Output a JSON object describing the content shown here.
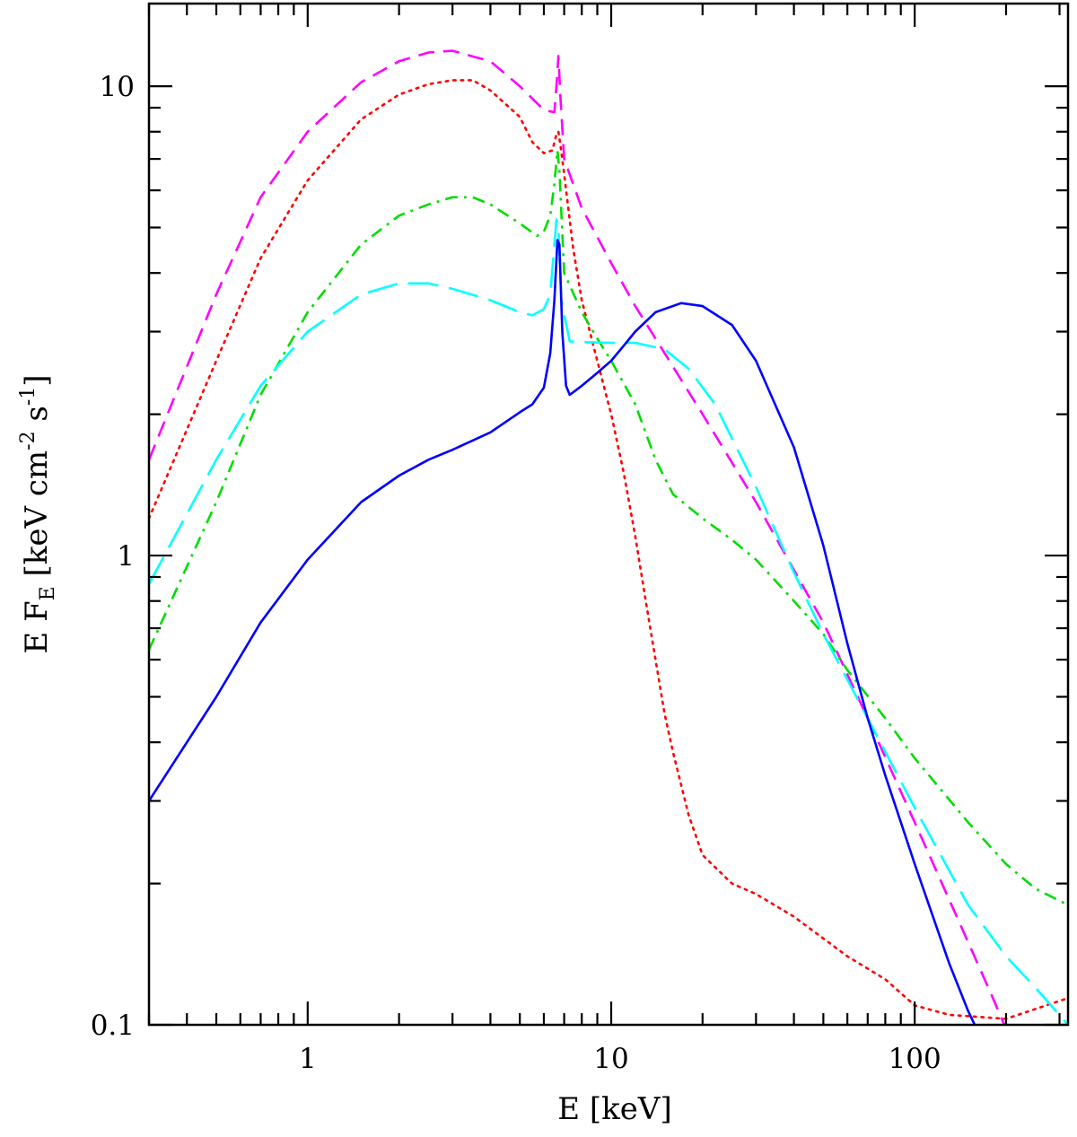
{
  "chart_data": {
    "type": "line",
    "title": "",
    "xlabel": "E [keV]",
    "ylabel": {
      "main": "E F",
      "sub": "E",
      "units": " [keV cm",
      "exp1": "-2",
      "mid": " s",
      "exp2": "-1",
      "close": "]"
    },
    "x_scale": "log",
    "y_scale": "log",
    "xlim": [
      0.3,
      320
    ],
    "ylim": [
      0.1,
      15
    ],
    "x_tick_labels": [
      {
        "value": 1,
        "label": "1"
      },
      {
        "value": 10,
        "label": "10"
      },
      {
        "value": 100,
        "label": "100"
      }
    ],
    "y_tick_labels": [
      {
        "value": 0.1,
        "label": "0.1"
      },
      {
        "value": 1,
        "label": "1"
      },
      {
        "value": 10,
        "label": "10"
      }
    ],
    "grid": false,
    "legend": "none",
    "series": [
      {
        "color": "#ff00ff",
        "dash": "dashed",
        "points": [
          [
            0.3,
            1.6
          ],
          [
            0.5,
            3.6
          ],
          [
            0.7,
            5.8
          ],
          [
            1,
            8.0
          ],
          [
            1.5,
            10.2
          ],
          [
            2,
            11.3
          ],
          [
            2.5,
            11.8
          ],
          [
            3,
            11.9
          ],
          [
            4,
            11.3
          ],
          [
            5,
            10.0
          ],
          [
            6,
            8.9
          ],
          [
            6.5,
            8.8
          ],
          [
            6.6,
            10.0
          ],
          [
            6.7,
            11.6
          ],
          [
            6.8,
            9.5
          ],
          [
            7,
            7.0
          ],
          [
            8,
            5.5
          ],
          [
            10,
            4.2
          ],
          [
            12,
            3.4
          ],
          [
            15,
            2.7
          ],
          [
            20,
            2.0
          ],
          [
            30,
            1.3
          ],
          [
            50,
            0.72
          ],
          [
            70,
            0.45
          ],
          [
            100,
            0.27
          ],
          [
            150,
            0.15
          ],
          [
            180,
            0.115
          ],
          [
            200,
            0.098
          ]
        ]
      },
      {
        "color": "#ff0000",
        "dash": "dotted",
        "points": [
          [
            0.3,
            1.2
          ],
          [
            0.5,
            2.6
          ],
          [
            0.7,
            4.3
          ],
          [
            1,
            6.3
          ],
          [
            1.5,
            8.5
          ],
          [
            2,
            9.6
          ],
          [
            2.5,
            10.1
          ],
          [
            3,
            10.3
          ],
          [
            3.5,
            10.3
          ],
          [
            4,
            9.8
          ],
          [
            5,
            8.6
          ],
          [
            5.5,
            7.6
          ],
          [
            6,
            7.2
          ],
          [
            6.4,
            7.3
          ],
          [
            6.6,
            7.9
          ],
          [
            6.7,
            8.0
          ],
          [
            6.8,
            7.5
          ],
          [
            7,
            6.5
          ],
          [
            7.5,
            4.5
          ],
          [
            8,
            3.5
          ],
          [
            9,
            2.6
          ],
          [
            10,
            2.0
          ],
          [
            11,
            1.5
          ],
          [
            12,
            1.1
          ],
          [
            13,
            0.8
          ],
          [
            14,
            0.6
          ],
          [
            15,
            0.46
          ],
          [
            16,
            0.38
          ],
          [
            18,
            0.28
          ],
          [
            20,
            0.23
          ],
          [
            25,
            0.2
          ],
          [
            30,
            0.19
          ],
          [
            40,
            0.17
          ],
          [
            60,
            0.14
          ],
          [
            80,
            0.125
          ],
          [
            100,
            0.11
          ],
          [
            130,
            0.105
          ],
          [
            200,
            0.103
          ],
          [
            320,
            0.114
          ]
        ]
      },
      {
        "color": "#00dd00",
        "dash": "dashdot",
        "points": [
          [
            0.3,
            0.63
          ],
          [
            0.5,
            1.3
          ],
          [
            0.7,
            2.2
          ],
          [
            1,
            3.3
          ],
          [
            1.5,
            4.6
          ],
          [
            2,
            5.3
          ],
          [
            2.5,
            5.6
          ],
          [
            3,
            5.8
          ],
          [
            3.5,
            5.8
          ],
          [
            4,
            5.6
          ],
          [
            5,
            5.1
          ],
          [
            5.7,
            4.8
          ],
          [
            6,
            4.9
          ],
          [
            6.3,
            5.3
          ],
          [
            6.5,
            6.2
          ],
          [
            6.65,
            7.3
          ],
          [
            6.75,
            6.6
          ],
          [
            7,
            4.0
          ],
          [
            8,
            3.3
          ],
          [
            9,
            2.9
          ],
          [
            10,
            2.6
          ],
          [
            12,
            2.1
          ],
          [
            14,
            1.6
          ],
          [
            16,
            1.35
          ],
          [
            20,
            1.2
          ],
          [
            25,
            1.08
          ],
          [
            30,
            0.98
          ],
          [
            40,
            0.8
          ],
          [
            50,
            0.68
          ],
          [
            60,
            0.57
          ],
          [
            80,
            0.45
          ],
          [
            100,
            0.37
          ],
          [
            150,
            0.27
          ],
          [
            200,
            0.22
          ],
          [
            250,
            0.195
          ],
          [
            320,
            0.18
          ]
        ]
      },
      {
        "color": "#00ffff",
        "dash": "longdash",
        "points": [
          [
            0.3,
            0.87
          ],
          [
            0.5,
            1.6
          ],
          [
            0.7,
            2.3
          ],
          [
            1,
            3.0
          ],
          [
            1.5,
            3.6
          ],
          [
            2,
            3.8
          ],
          [
            2.5,
            3.8
          ],
          [
            3,
            3.7
          ],
          [
            4,
            3.5
          ],
          [
            5,
            3.3
          ],
          [
            5.5,
            3.25
          ],
          [
            6,
            3.35
          ],
          [
            6.3,
            3.6
          ],
          [
            6.6,
            5.2
          ],
          [
            6.7,
            5.0
          ],
          [
            6.85,
            3.5
          ],
          [
            7.3,
            2.86
          ],
          [
            8,
            2.85
          ],
          [
            10,
            2.84
          ],
          [
            12,
            2.84
          ],
          [
            15,
            2.75
          ],
          [
            18,
            2.5
          ],
          [
            22,
            2.1
          ],
          [
            30,
            1.4
          ],
          [
            40,
            0.92
          ],
          [
            50,
            0.68
          ],
          [
            70,
            0.45
          ],
          [
            100,
            0.29
          ],
          [
            150,
            0.18
          ],
          [
            200,
            0.14
          ],
          [
            250,
            0.12
          ],
          [
            320,
            0.1
          ]
        ]
      },
      {
        "color": "#0000ff",
        "dash": "solid",
        "points": [
          [
            0.3,
            0.3
          ],
          [
            0.5,
            0.5
          ],
          [
            0.7,
            0.72
          ],
          [
            1,
            0.98
          ],
          [
            1.5,
            1.3
          ],
          [
            2,
            1.48
          ],
          [
            2.5,
            1.6
          ],
          [
            3,
            1.68
          ],
          [
            4,
            1.83
          ],
          [
            5,
            2.02
          ],
          [
            5.5,
            2.1
          ],
          [
            6,
            2.28
          ],
          [
            6.3,
            2.7
          ],
          [
            6.5,
            3.5
          ],
          [
            6.65,
            4.7
          ],
          [
            6.75,
            4.6
          ],
          [
            6.9,
            3.0
          ],
          [
            7.1,
            2.3
          ],
          [
            7.3,
            2.2
          ],
          [
            8,
            2.3
          ],
          [
            9,
            2.45
          ],
          [
            10,
            2.6
          ],
          [
            11,
            2.8
          ],
          [
            12,
            3.0
          ],
          [
            14,
            3.3
          ],
          [
            17,
            3.45
          ],
          [
            20,
            3.4
          ],
          [
            25,
            3.1
          ],
          [
            30,
            2.6
          ],
          [
            40,
            1.7
          ],
          [
            50,
            1.05
          ],
          [
            60,
            0.65
          ],
          [
            70,
            0.45
          ],
          [
            80,
            0.34
          ],
          [
            100,
            0.22
          ],
          [
            130,
            0.135
          ],
          [
            150,
            0.107
          ],
          [
            160,
            0.098
          ]
        ]
      }
    ]
  }
}
